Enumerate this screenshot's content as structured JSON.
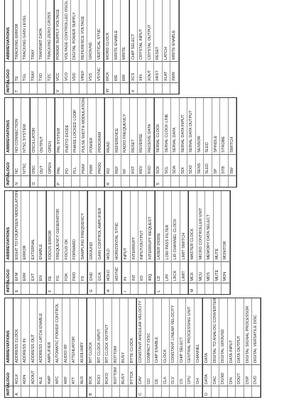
{
  "columns": [
    {
      "header": [
        "INITIAL",
        "LOGO",
        "ABBREVIATIONS"
      ],
      "sections": [
        {
          "letter": "A",
          "rows": [
            [
              "ACLK",
              "ADDRESS CLOCK"
            ],
            [
              "ADIN",
              "ADDRESS IN"
            ],
            [
              "ADOUT",
              "ADDRESS OUT"
            ],
            [
              "ALE",
              "ADDRESS LATCH ENABLE"
            ],
            [
              "AMP",
              "AMPLIFIER"
            ],
            [
              "APC",
              "AUTOMATIC POWER CONTROL"
            ],
            [
              "ARF",
              "AUDIO RF"
            ],
            [
              "ATT",
              "ATTENUATOR"
            ],
            [
              "AUX",
              "AUXILIARY"
            ]
          ]
        },
        {
          "letter": "B",
          "rows": [
            [
              "BCK",
              "BIT CLOCK"
            ],
            [
              "BCKI",
              "BIT CLOCK INPUT"
            ],
            [
              "BCKO",
              "BIT CLOCK OUTPUT"
            ],
            [
              "BOTTOM",
              "BOTTOM"
            ],
            [
              "BUSY",
              "BUSY"
            ],
            [
              "BYTCK",
              "BYTE CLOCK"
            ]
          ]
        },
        {
          "letter": "C",
          "rows": [
            [
              "CAV",
              "CONSTANT ANGULAR VELOCITY"
            ],
            [
              "CD",
              "COMPACT DISC"
            ],
            [
              "CE",
              "CHIP ENABLE"
            ],
            [
              "CLK",
              "CLOCK"
            ],
            [
              "CLV",
              "CONSTANT LINEAR VELOCITY"
            ],
            [
              "CS",
              "CHIP SELECT"
            ],
            [
              "CPU",
              "CENTRAL PROCESSING UNIT"
            ],
            [
              "CH",
              "CHANNEL"
            ]
          ]
        },
        {
          "letter": "D",
          "rows": [
            [
              "DATA",
              "DATA"
            ],
            [
              "DAC",
              "DIGITAL TO ANALOG CONVERTER"
            ],
            [
              "DGND",
              "DIGITAL GROUND"
            ],
            [
              "DIN",
              "DATA INPUT"
            ],
            [
              "DOUT",
              "DATA OUTPUT"
            ],
            [
              "DSP",
              "DIGITAL SIGNAL PROCESSOR"
            ],
            [
              "DVD",
              "DIGITAL VERSATILE DISC"
            ]
          ]
        }
      ]
    },
    {
      "header": [
        "INITIAL",
        "LOGO",
        "ABBREVIATIONS"
      ],
      "sections": [
        {
          "letter": "E",
          "rows": [
            [
              "EFM",
              "EIGHT TO FOURTEEN MODULATION"
            ],
            [
              "ERR",
              "ERROR"
            ],
            [
              "EXT",
              "EXTERNAL"
            ],
            [
              "EN",
              "ENABLE"
            ]
          ]
        },
        {
          "letter": "F",
          "rows": [
            [
              "FE",
              "FOCUS ERROR"
            ],
            [
              "FG",
              "FREQUENCY GENERATOR"
            ],
            [
              "FOK",
              "FOCUS OK"
            ],
            [
              "FWD",
              "FORWARD"
            ],
            [
              "FS",
              "SAMPLING FREQUENCY"
            ]
          ]
        },
        {
          "letter": "G",
          "rows": [
            [
              "GND",
              "GROUND"
            ],
            [
              "GCA",
              "GAIN CONTROL AMPLIFIER"
            ]
          ]
        },
        {
          "letter": "H",
          "rows": [
            [
              "HOLD",
              "HOLD"
            ],
            [
              "HSYNC",
              "HORIZONTAL SYNC"
            ]
          ]
        },
        {
          "letter": "I",
          "rows": [
            [
              "IN",
              "INPUT"
            ],
            [
              "INT",
              "INTERRUPT"
            ],
            [
              "I/O",
              "INPUT/OUTPUT"
            ],
            [
              "IRQ",
              "INTERRUPT REQUEST"
            ]
          ]
        },
        {
          "letter": "L",
          "rows": [
            [
              "LD",
              "LASER DIODE"
            ],
            [
              "LPF",
              "LOW PASS FILTER"
            ],
            [
              "LRCK",
              "L/R CHANNEL CLOCK"
            ],
            [
              "LIMIT",
              "LIMIT SWITCH"
            ]
          ]
        },
        {
          "letter": "M",
          "rows": [
            [
              "MCK",
              "MASTER CLOCK"
            ],
            [
              "MCU",
              "MICRO CONTROLLER UNIT"
            ],
            [
              "MDS",
              "MEMORY DATA SELECT"
            ],
            [
              "MUTE",
              "MUTE"
            ],
            [
              "MON",
              "MONITOR"
            ]
          ]
        }
      ]
    },
    {
      "header": [
        "INITIAL",
        "LOGO",
        "ABBREVIATIONS"
      ],
      "sections": [
        {
          "letter": "N",
          "rows": [
            [
              "NC",
              "NO CONNECTION"
            ],
            [
              "NTSC",
              "NTSC SYSTEM"
            ]
          ]
        },
        {
          "letter": "O",
          "rows": [
            [
              "OSC",
              "OSCILLATOR"
            ],
            [
              "OUT",
              "OUTPUT"
            ],
            [
              "OPEN",
              "OPEN"
            ]
          ]
        },
        {
          "letter": "P",
          "rows": [
            [
              "PAL",
              "PAL SYSTEM"
            ],
            [
              "PD",
              "PHOTO DIODE"
            ],
            [
              "PLL",
              "PHASE LOCKED LOOP"
            ],
            [
              "PWM",
              "PULSE WIDTH MODULATION"
            ],
            [
              "PWR",
              "POWER"
            ],
            [
              "PROG",
              "PROGRAM"
            ]
          ]
        },
        {
          "letter": "R",
          "rows": [
            [
              "RD",
              "READ"
            ],
            [
              "REF",
              "REFERENCE"
            ],
            [
              "RF",
              "RADIO FREQUENCY"
            ],
            [
              "RST",
              "RESET"
            ],
            [
              "REV",
              "REVERSE"
            ],
            [
              "RXD",
              "RECEIVE DATA"
            ]
          ]
        },
        {
          "letter": "S",
          "rows": [
            [
              "SCK",
              "SERIAL CLOCK"
            ],
            [
              "SCL",
              "SERIAL CLOCK LINE"
            ],
            [
              "SDA",
              "SERIAL DATA"
            ],
            [
              "SDI",
              "SERIAL DATA INPUT"
            ],
            [
              "SDO",
              "SERIAL DATA OUTPUT"
            ],
            [
              "SENS",
              "SENSOR"
            ],
            [
              "SLED",
              "SLED"
            ],
            [
              "SP",
              "SPINDLE"
            ],
            [
              "STB",
              "STROBE"
            ],
            [
              "SW",
              "SWITCH"
            ]
          ]
        }
      ]
    },
    {
      "header": [
        "INITIAL",
        "LOGO",
        "ABBREVIATIONS"
      ],
      "sections": [
        {
          "letter": "T",
          "rows": [
            [
              "TE",
              "TRACKING ERROR"
            ],
            [
              "TGL",
              "TRACKING GAIN LEVEL"
            ],
            [
              "TRAY",
              "TRAY"
            ],
            [
              "TXD",
              "TRANSMIT DATA"
            ],
            [
              "TZC",
              "TRACKING ZERO CROSS"
            ]
          ]
        },
        {
          "letter": "V",
          "rows": [
            [
              "VCC",
              "POWER SUPPLY VOLTAGE"
            ],
            [
              "VCO",
              "VOLTAGE CONTROLLED OSCILLATOR"
            ],
            [
              "VDD",
              "DIGITAL POWER SUPPLY"
            ],
            [
              "VREF",
              "REFERENCE VOLTAGE"
            ],
            [
              "VSS",
              "GROUND"
            ],
            [
              "VSYNC",
              "VERTICAL SYNC"
            ]
          ]
        },
        {
          "letter": "W",
          "rows": [
            [
              "WCK",
              "WORD CLOCK"
            ],
            [
              "WE",
              "WRITE ENABLE"
            ],
            [
              "WR",
              "WRITE"
            ]
          ]
        },
        {
          "letter": "X",
          "rows": [
            [
              "XCS",
              "CHIP SELECT"
            ],
            [
              "XIN",
              "CRYSTAL INPUT"
            ],
            [
              "XOUT",
              "CRYSTAL OUTPUT"
            ],
            [
              "XRST",
              "RESET"
            ],
            [
              "XLAT",
              "LATCH"
            ],
            [
              "XWR",
              "WRITE ENABLE"
            ]
          ]
        }
      ]
    }
  ]
}
